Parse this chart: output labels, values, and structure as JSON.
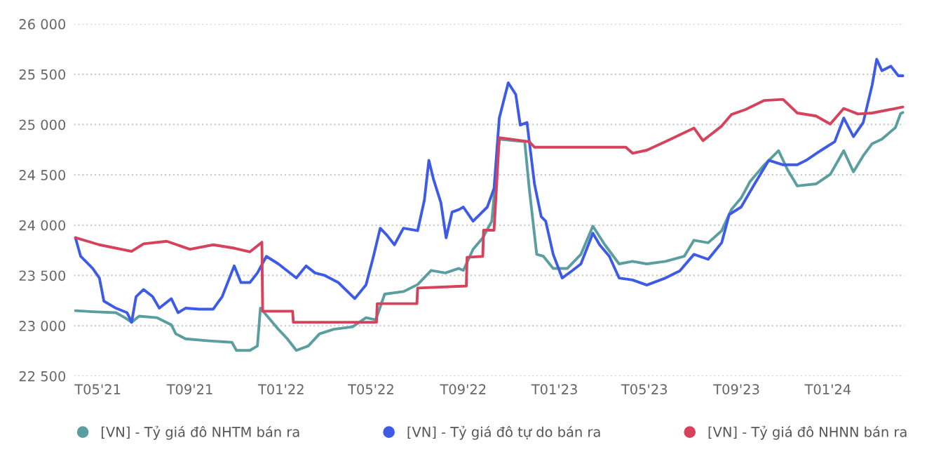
{
  "chart_data": {
    "type": "line",
    "xlim": [
      "2021-03-30",
      "2024-04-12"
    ],
    "xticks": [
      {
        "value": "2021-05-01",
        "label": "T05'21"
      },
      {
        "value": "2021-09-01",
        "label": "T09'21"
      },
      {
        "value": "2022-01-01",
        "label": "T01'22"
      },
      {
        "value": "2022-05-01",
        "label": "T05'22"
      },
      {
        "value": "2022-09-01",
        "label": "T09'22"
      },
      {
        "value": "2023-01-01",
        "label": "T01'23"
      },
      {
        "value": "2023-05-01",
        "label": "T05'23"
      },
      {
        "value": "2023-09-01",
        "label": "T09'23"
      },
      {
        "value": "2024-01-01",
        "label": "T01'24"
      }
    ],
    "ylim": [
      22500,
      26000
    ],
    "yticks": [
      {
        "value": 22500,
        "label": "22 500"
      },
      {
        "value": 23000,
        "label": "23 000"
      },
      {
        "value": 23500,
        "label": "23 500"
      },
      {
        "value": 24000,
        "label": "24 000"
      },
      {
        "value": 24500,
        "label": "24 500"
      },
      {
        "value": 25000,
        "label": "25 000"
      },
      {
        "value": 25500,
        "label": "25 500"
      },
      {
        "value": 26000,
        "label": "26 000"
      }
    ],
    "grid": "y",
    "legend": "bottom",
    "line_style": "solid",
    "series": [
      {
        "name": "[VN] - Tỷ giá đô NHTM bán ra",
        "color": "#5a9ea0",
        "x": [
          "2021-04-01",
          "2021-04-24",
          "2021-05-25",
          "2021-06-06",
          "2021-06-15",
          "2021-06-25",
          "2021-07-19",
          "2021-08-07",
          "2021-08-13",
          "2021-08-26",
          "2021-09-26",
          "2021-10-27",
          "2021-11-02",
          "2021-11-20",
          "2021-11-30",
          "2021-12-04",
          "2021-12-15",
          "2021-12-28",
          "2022-01-09",
          "2022-01-21",
          "2022-02-06",
          "2022-02-21",
          "2022-03-12",
          "2022-04-06",
          "2022-04-24",
          "2022-05-07",
          "2022-05-19",
          "2022-06-13",
          "2022-07-02",
          "2022-07-20",
          "2022-08-08",
          "2022-08-26",
          "2022-09-01",
          "2022-09-14",
          "2022-09-27",
          "2022-10-09",
          "2022-10-19",
          "2022-11-22",
          "2022-11-28",
          "2022-12-08",
          "2022-12-17",
          "2022-12-30",
          "2023-01-18",
          "2023-02-05",
          "2023-02-21",
          "2023-03-09",
          "2023-03-28",
          "2023-04-15",
          "2023-05-04",
          "2023-05-29",
          "2023-06-23",
          "2023-07-06",
          "2023-07-25",
          "2023-08-12",
          "2023-08-25",
          "2023-09-07",
          "2023-09-19",
          "2023-10-08",
          "2023-10-27",
          "2023-11-08",
          "2023-11-21",
          "2023-12-16",
          "2024-01-04",
          "2024-01-22",
          "2024-02-04",
          "2024-02-17",
          "2024-02-29",
          "2024-03-13",
          "2024-03-31",
          "2024-04-07",
          "2024-04-10"
        ],
        "values": [
          23150,
          23140,
          23130,
          23080,
          23035,
          23095,
          23080,
          23010,
          22920,
          22870,
          22850,
          22835,
          22755,
          22755,
          22800,
          23175,
          23080,
          22965,
          22870,
          22755,
          22800,
          22920,
          22965,
          22990,
          23080,
          23060,
          23315,
          23340,
          23410,
          23550,
          23525,
          23570,
          23550,
          23760,
          23875,
          24040,
          24855,
          24830,
          24365,
          23710,
          23690,
          23570,
          23570,
          23710,
          23990,
          23805,
          23615,
          23640,
          23615,
          23640,
          23690,
          23850,
          23825,
          23945,
          24155,
          24270,
          24435,
          24600,
          24740,
          24550,
          24390,
          24410,
          24505,
          24740,
          24530,
          24690,
          24810,
          24855,
          24970,
          25110,
          25120
        ]
      },
      {
        "name": "[VN] - Tỷ giá đô tự do bán ra",
        "color": "#3d5be6",
        "x": [
          "2021-04-01",
          "2021-04-08",
          "2021-04-24",
          "2021-05-03",
          "2021-05-09",
          "2021-05-25",
          "2021-06-09",
          "2021-06-15",
          "2021-06-21",
          "2021-07-01",
          "2021-07-13",
          "2021-07-22",
          "2021-08-07",
          "2021-08-16",
          "2021-08-26",
          "2021-09-13",
          "2021-10-02",
          "2021-10-14",
          "2021-10-30",
          "2021-11-08",
          "2021-11-20",
          "2021-11-30",
          "2021-12-12",
          "2021-12-28",
          "2022-01-09",
          "2022-01-21",
          "2022-02-03",
          "2022-02-15",
          "2022-02-28",
          "2022-03-18",
          "2022-04-09",
          "2022-04-24",
          "2022-05-04",
          "2022-05-13",
          "2022-05-22",
          "2022-06-01",
          "2022-06-13",
          "2022-07-02",
          "2022-07-11",
          "2022-07-17",
          "2022-07-23",
          "2022-08-02",
          "2022-08-09",
          "2022-08-17",
          "2022-08-26",
          "2022-09-01",
          "2022-09-14",
          "2022-10-03",
          "2022-10-12",
          "2022-10-19",
          "2022-10-31",
          "2022-11-10",
          "2022-11-16",
          "2022-11-25",
          "2022-12-05",
          "2022-12-14",
          "2022-12-20",
          "2022-12-30",
          "2023-01-11",
          "2023-01-24",
          "2023-02-05",
          "2023-02-21",
          "2023-03-02",
          "2023-03-15",
          "2023-03-28",
          "2023-04-15",
          "2023-05-04",
          "2023-05-29",
          "2023-06-17",
          "2023-07-06",
          "2023-07-25",
          "2023-08-12",
          "2023-08-22",
          "2023-09-07",
          "2023-09-25",
          "2023-10-14",
          "2023-11-02",
          "2023-11-21",
          "2023-12-03",
          "2023-12-22",
          "2024-01-10",
          "2024-01-22",
          "2024-02-04",
          "2024-02-17",
          "2024-02-29",
          "2024-03-06",
          "2024-03-13",
          "2024-03-25",
          "2024-04-04",
          "2024-04-10"
        ],
        "values": [
          23875,
          23690,
          23570,
          23475,
          23245,
          23175,
          23130,
          23035,
          23290,
          23360,
          23290,
          23175,
          23270,
          23130,
          23175,
          23165,
          23165,
          23290,
          23595,
          23430,
          23430,
          23525,
          23690,
          23615,
          23545,
          23475,
          23595,
          23525,
          23500,
          23430,
          23270,
          23405,
          23690,
          23970,
          23900,
          23805,
          23970,
          23945,
          24250,
          24645,
          24460,
          24225,
          23875,
          24130,
          24155,
          24180,
          24040,
          24180,
          24365,
          25065,
          25415,
          25300,
          24995,
          25020,
          24410,
          24085,
          24040,
          23710,
          23475,
          23545,
          23615,
          23920,
          23805,
          23690,
          23475,
          23455,
          23405,
          23475,
          23545,
          23710,
          23660,
          23825,
          24105,
          24180,
          24410,
          24645,
          24600,
          24600,
          24645,
          24740,
          24830,
          25065,
          24880,
          25020,
          25395,
          25650,
          25535,
          25580,
          25485,
          25485
        ]
      },
      {
        "name": "[VN] - Tỷ giá đô NHNN bán ra",
        "color": "#d6425c",
        "x": [
          "2021-04-01",
          "2021-05-03",
          "2021-06-15",
          "2021-07-01",
          "2021-08-01",
          "2021-09-01",
          "2021-10-02",
          "2021-10-31",
          "2021-11-20",
          "2021-12-06",
          "2021-12-07",
          "2022-01-16",
          "2022-01-17",
          "2022-05-08",
          "2022-05-09",
          "2022-07-01",
          "2022-07-02",
          "2022-09-05",
          "2022-09-06",
          "2022-09-27",
          "2022-09-28",
          "2022-10-12",
          "2022-10-19",
          "2022-11-28",
          "2022-12-05",
          "2023-04-06",
          "2023-04-15",
          "2023-05-04",
          "2023-05-29",
          "2023-07-06",
          "2023-07-18",
          "2023-08-12",
          "2023-08-25",
          "2023-09-13",
          "2023-10-08",
          "2023-11-02",
          "2023-11-21",
          "2023-12-16",
          "2024-01-04",
          "2024-01-22",
          "2024-02-10",
          "2024-02-29",
          "2024-03-31",
          "2024-04-10"
        ],
        "values": [
          23875,
          23805,
          23740,
          23815,
          23840,
          23760,
          23805,
          23770,
          23735,
          23830,
          23145,
          23145,
          23035,
          23035,
          23220,
          23220,
          23375,
          23395,
          23680,
          23690,
          23950,
          23950,
          24870,
          24830,
          24775,
          24775,
          24715,
          24745,
          24830,
          24965,
          24840,
          24985,
          25100,
          25150,
          25240,
          25250,
          25115,
          25085,
          25005,
          25160,
          25105,
          25115,
          25160,
          25175
        ]
      }
    ]
  }
}
